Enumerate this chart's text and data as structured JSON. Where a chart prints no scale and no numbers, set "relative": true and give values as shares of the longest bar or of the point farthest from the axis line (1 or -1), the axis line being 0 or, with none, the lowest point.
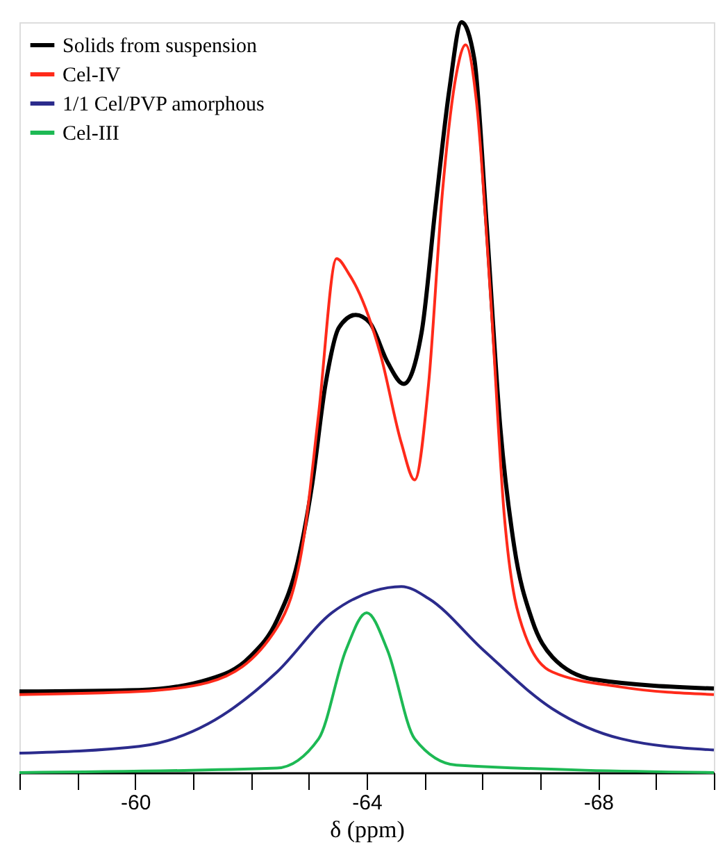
{
  "chart_data": {
    "type": "line",
    "relative": true,
    "xlabel": "δ (ppm)",
    "xlim": [
      -58,
      -70
    ],
    "xticks": [
      {
        "value": -58,
        "label": null
      },
      {
        "value": -59,
        "label": null
      },
      -60,
      {
        "value": -61,
        "label": null
      },
      {
        "value": -62,
        "label": null
      },
      {
        "value": -63,
        "label": null
      },
      -64,
      {
        "value": -65,
        "label": null
      },
      {
        "value": -66,
        "label": null
      },
      {
        "value": -67,
        "label": null
      },
      -68,
      {
        "value": -69,
        "label": null
      },
      {
        "value": -70,
        "label": null
      }
    ],
    "grid": false,
    "legend": "top left",
    "marker": "none",
    "line_style": "solid",
    "series": [
      {
        "name": "Solids from suspension",
        "color": "#000000",
        "x": [
          -58.0,
          -60.07,
          -61.26,
          -61.98,
          -62.45,
          -62.81,
          -63.05,
          -63.29,
          -63.52,
          -63.81,
          -64.05,
          -64.36,
          -64.64,
          -64.95,
          -65.19,
          -65.43,
          -65.64,
          -65.86,
          -66.07,
          -66.31,
          -66.55,
          -66.86,
          -67.21,
          -67.93,
          -70.0
        ],
        "values": [
          0.108,
          0.11,
          0.124,
          0.154,
          0.203,
          0.281,
          0.38,
          0.518,
          0.593,
          0.61,
          0.6,
          0.547,
          0.518,
          0.587,
          0.754,
          0.911,
          1.0,
          0.951,
          0.734,
          0.459,
          0.301,
          0.203,
          0.154,
          0.124,
          0.112
        ]
      },
      {
        "name": "Cel-IV",
        "color": "#ff2a1a",
        "x": [
          -58.0,
          -60.07,
          -61.26,
          -62.45,
          -62.93,
          -63.17,
          -63.48,
          -63.69,
          -63.83,
          -64.24,
          -64.6,
          -64.83,
          -65.07,
          -65.31,
          -65.55,
          -65.71,
          -65.9,
          -66.14,
          -66.38,
          -66.74,
          -67.21,
          -68.4,
          -70.0
        ],
        "values": [
          0.104,
          0.108,
          0.12,
          0.193,
          0.321,
          0.478,
          0.685,
          0.665,
          0.646,
          0.557,
          0.439,
          0.39,
          0.518,
          0.774,
          0.931,
          0.97,
          0.892,
          0.636,
          0.341,
          0.183,
          0.134,
          0.114,
          0.104
        ]
      },
      {
        "name": "1/1 Cel/PVP amorphous",
        "color": "#2b2b8c",
        "x": [
          -58.0,
          -60.07,
          -61.26,
          -62.45,
          -63.4,
          -64.12,
          -64.6,
          -65.07,
          -66.02,
          -67.21,
          -68.4,
          -70.0
        ],
        "values": [
          0.026,
          0.035,
          0.065,
          0.134,
          0.213,
          0.242,
          0.248,
          0.232,
          0.163,
          0.085,
          0.045,
          0.03
        ]
      },
      {
        "name": "Cel-III",
        "color": "#1db954",
        "x": [
          -58.0,
          -62.45,
          -63.17,
          -63.64,
          -64.0,
          -64.36,
          -64.83,
          -65.55,
          -70.0
        ],
        "values": [
          0.0,
          0.006,
          0.045,
          0.163,
          0.213,
          0.163,
          0.045,
          0.01,
          0.0
        ]
      }
    ]
  }
}
